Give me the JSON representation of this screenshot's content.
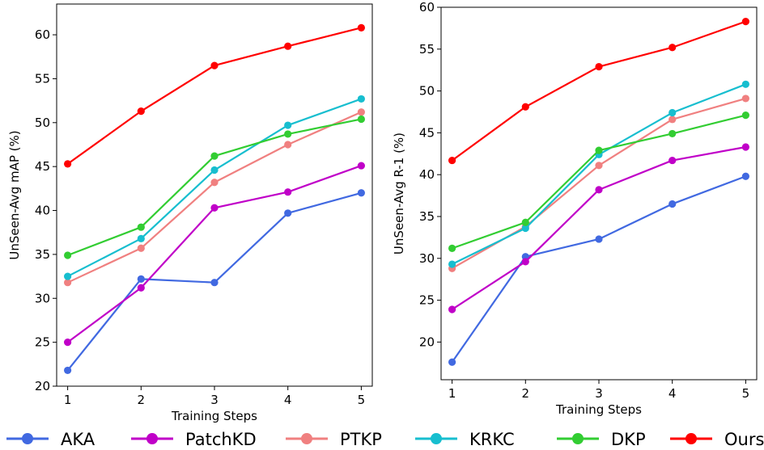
{
  "chart_data": [
    {
      "type": "line",
      "title": "",
      "xlabel": "Training Steps",
      "ylabel": "UnSeen-Avg mAP (%)",
      "x": [
        1,
        2,
        3,
        4,
        5
      ],
      "xlim": [
        0.85,
        5.15
      ],
      "ylim": [
        20,
        63.5
      ],
      "yticks": [
        20,
        25,
        30,
        35,
        40,
        45,
        50,
        55,
        60
      ],
      "grid": false,
      "series": [
        {
          "name": "AKA",
          "color": "#4169e1",
          "values": [
            21.8,
            32.2,
            31.8,
            39.7,
            42.0
          ]
        },
        {
          "name": "PatchKD",
          "color": "#c000c8",
          "values": [
            25.0,
            31.2,
            40.3,
            42.1,
            45.1
          ]
        },
        {
          "name": "PTKP",
          "color": "#f08080",
          "values": [
            31.8,
            35.7,
            43.2,
            47.5,
            51.2
          ]
        },
        {
          "name": "KRKC",
          "color": "#17becf",
          "values": [
            32.5,
            36.8,
            44.6,
            49.7,
            52.7
          ]
        },
        {
          "name": "DKP",
          "color": "#32cd32",
          "values": [
            34.9,
            38.1,
            46.2,
            48.7,
            50.4
          ]
        },
        {
          "name": "Ours",
          "color": "#ff0000",
          "values": [
            45.3,
            51.3,
            56.5,
            58.7,
            60.8
          ]
        }
      ]
    },
    {
      "type": "line",
      "title": "",
      "xlabel": "Training Steps",
      "ylabel": "UnSeen-Avg R-1 (%)",
      "x": [
        1,
        2,
        3,
        4,
        5
      ],
      "xlim": [
        0.85,
        5.15
      ],
      "ylim": [
        15.5,
        60
      ],
      "yticks": [
        20,
        25,
        30,
        35,
        40,
        45,
        50,
        55,
        60
      ],
      "grid": false,
      "series": [
        {
          "name": "AKA",
          "color": "#4169e1",
          "values": [
            17.6,
            30.2,
            32.3,
            36.5,
            39.8
          ]
        },
        {
          "name": "PatchKD",
          "color": "#c000c8",
          "values": [
            23.9,
            29.6,
            38.2,
            41.7,
            43.3
          ]
        },
        {
          "name": "PTKP",
          "color": "#f08080",
          "values": [
            28.8,
            33.8,
            41.1,
            46.6,
            49.1
          ]
        },
        {
          "name": "KRKC",
          "color": "#17becf",
          "values": [
            29.3,
            33.6,
            42.4,
            47.4,
            50.8
          ]
        },
        {
          "name": "DKP",
          "color": "#32cd32",
          "values": [
            31.2,
            34.3,
            42.9,
            44.9,
            47.1
          ]
        },
        {
          "name": "Ours",
          "color": "#ff0000",
          "values": [
            41.7,
            48.1,
            52.9,
            55.2,
            58.3
          ]
        }
      ]
    }
  ],
  "legend": {
    "position": "bottom",
    "entries": [
      {
        "label": "AKA",
        "color": "#4169e1"
      },
      {
        "label": "PatchKD",
        "color": "#c000c8"
      },
      {
        "label": "PTKP",
        "color": "#f08080"
      },
      {
        "label": "KRKC",
        "color": "#17becf"
      },
      {
        "label": "DKP",
        "color": "#32cd32"
      },
      {
        "label": "Ours",
        "color": "#ff0000"
      }
    ]
  }
}
